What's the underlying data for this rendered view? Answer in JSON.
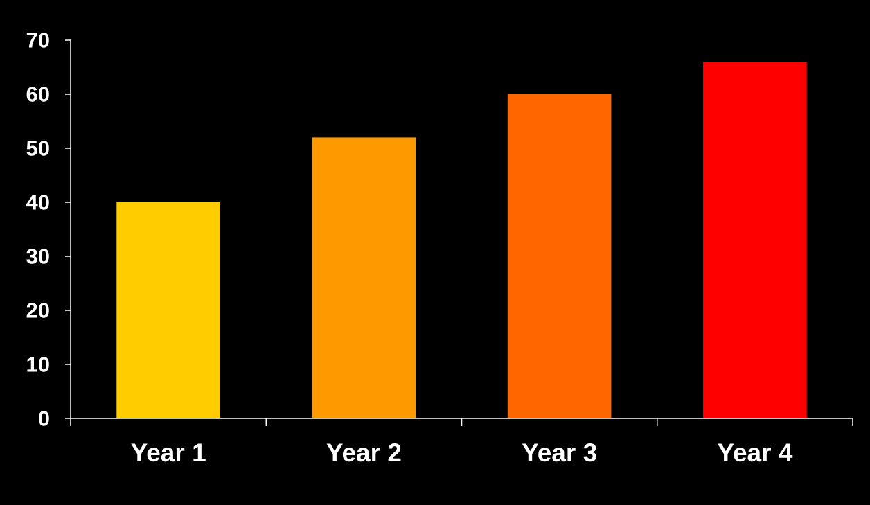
{
  "chart_data": {
    "type": "bar",
    "title": "",
    "xlabel": "",
    "ylabel": "",
    "categories": [
      "Year 1",
      "Year 2",
      "Year 3",
      "Year 4"
    ],
    "values": [
      40,
      52,
      60,
      66
    ],
    "bar_colors": [
      "#ffcc00",
      "#ff9900",
      "#ff6600",
      "#ff0000"
    ],
    "ylim": [
      0,
      70
    ],
    "yticks": [
      0,
      10,
      20,
      30,
      40,
      50,
      60,
      70
    ],
    "grid": false,
    "legend": "none",
    "background": "#000000",
    "text_color": "#ffffff"
  }
}
